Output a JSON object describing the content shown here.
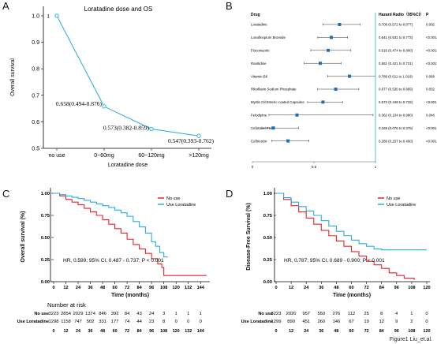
{
  "figure_caption": "Figure1 Liu_et.al.",
  "panels": {
    "A": {
      "letter": "A"
    },
    "B": {
      "letter": "B"
    },
    "C": {
      "letter": "C"
    },
    "D": {
      "letter": "D"
    }
  },
  "chart_data": [
    {
      "id": "A",
      "type": "line",
      "title": "Loratadine dose and OS",
      "xlabel": "Loratadine dose",
      "ylabel": "Overall survival",
      "categories": [
        "no use",
        "0~60mg",
        "60~120mg",
        ">120mg"
      ],
      "values": [
        1.0,
        0.658,
        0.573,
        0.547
      ],
      "point_labels": [
        "1",
        "0.658(0.494-0.876)",
        "0.573(0.382-0.859)",
        "0.547(0.393-0.762)"
      ],
      "ylim": [
        0.5,
        1.0
      ],
      "yticks": [
        "0.5",
        "0.6",
        "0.7",
        "0.8",
        "0.9",
        "1.0"
      ],
      "color": "#29abe2"
    },
    {
      "id": "B",
      "type": "forest",
      "header_drug": "Drug",
      "header_hr": "Hazard Radio（95%CI）",
      "header_p": "P",
      "xticks": [
        "0",
        "0.5",
        "1"
      ],
      "xlim": [
        0,
        1
      ],
      "rows": [
        {
          "drug": "Loratadine",
          "hr": 0.708,
          "lo": 0.572,
          "hi": 0.877,
          "text": "0.708 (0.572 to 0.877)",
          "p": "0.002"
        },
        {
          "drug": "Lonafinopium Bromide",
          "hr": 0.641,
          "lo": 0.531,
          "hi": 0.773,
          "text": "0.641 (0.531 to 0.773)",
          "p": "<0.001"
        },
        {
          "drug": "Fluconazole",
          "hr": 0.616,
          "lo": 0.474,
          "hi": 0.8,
          "text": "0.616 (0.474 to 0.800)",
          "p": "<0.001"
        },
        {
          "drug": "Ranitidine",
          "hr": 0.551,
          "lo": 0.421,
          "hi": 0.721,
          "text": "0.551 (0.421 to 0.721)",
          "p": "<0.001"
        },
        {
          "drug": "Vitamin B6",
          "hr": 0.789,
          "lo": 0.611,
          "hi": 1.019,
          "text": "0.789 (0.611 to 1.019)",
          "p": "0.068"
        },
        {
          "drug": "Riboflavin Sodium Phosphate",
          "hr": 0.677,
          "lo": 0.53,
          "hi": 0.865,
          "text": "0.677 (0.530 to 0.865)",
          "p": "0.002"
        },
        {
          "drug": "Myrtle Oil Enteric-coated Capsules",
          "hr": 0.573,
          "lo": 0.448,
          "hi": 0.732,
          "text": "0.573 (0.448 to 0.732)",
          "p": "<0.001"
        },
        {
          "drug": "Felodipine",
          "hr": 0.362,
          "lo": 0.134,
          "hi": 0.98,
          "text": "0.362 (0.134 to 0.980)",
          "p": "0.046"
        },
        {
          "drug": "Cefotaxel Proxil",
          "hr": 0.169,
          "lo": 0.076,
          "hi": 0.375,
          "text": "0.169 (0.076 to 0.375)",
          "p": "<0.001"
        },
        {
          "drug": "Cefinerdor",
          "hr": 0.289,
          "lo": 0.157,
          "hi": 0.46,
          "text": "0.289 (0.157 to 0.460)",
          "p": "<0.001"
        }
      ]
    },
    {
      "id": "C",
      "type": "line",
      "xlabel": "Time (months)",
      "ylabel": "Overall survival (%)",
      "xlim": [
        0,
        150
      ],
      "ylim": [
        0,
        1
      ],
      "xticks": [
        0,
        12,
        24,
        36,
        48,
        60,
        72,
        84,
        96,
        108,
        120,
        132,
        144
      ],
      "yticks": [
        "0.00",
        "0.25",
        "0.50",
        "0.75",
        "1.00"
      ],
      "legend": [
        "No use",
        "Use Loratadine"
      ],
      "annotation": "HR, 0.599; 95% CI, 0.487 - 0.737; P < 0.001",
      "series": [
        {
          "name": "No use",
          "color": "#e8202a",
          "points": [
            [
              0,
              1
            ],
            [
              6,
              0.97
            ],
            [
              12,
              0.93
            ],
            [
              18,
              0.9
            ],
            [
              24,
              0.87
            ],
            [
              30,
              0.83
            ],
            [
              36,
              0.79
            ],
            [
              42,
              0.75
            ],
            [
              48,
              0.7
            ],
            [
              54,
              0.65
            ],
            [
              60,
              0.6
            ],
            [
              66,
              0.55
            ],
            [
              72,
              0.48
            ],
            [
              78,
              0.42
            ],
            [
              84,
              0.37
            ],
            [
              90,
              0.32
            ],
            [
              96,
              0.26
            ],
            [
              102,
              0.2
            ],
            [
              106,
              0.16
            ],
            [
              108,
              0.07
            ],
            [
              150,
              0.07
            ]
          ]
        },
        {
          "name": "Use Loratadine",
          "color": "#29abe2",
          "points": [
            [
              0,
              1
            ],
            [
              6,
              0.985
            ],
            [
              12,
              0.97
            ],
            [
              18,
              0.955
            ],
            [
              24,
              0.94
            ],
            [
              30,
              0.92
            ],
            [
              36,
              0.9
            ],
            [
              42,
              0.88
            ],
            [
              48,
              0.86
            ],
            [
              54,
              0.84
            ],
            [
              60,
              0.81
            ],
            [
              66,
              0.78
            ],
            [
              72,
              0.74
            ],
            [
              78,
              0.68
            ],
            [
              84,
              0.62
            ],
            [
              90,
              0.55
            ],
            [
              96,
              0.45
            ],
            [
              100,
              0.4
            ],
            [
              104,
              0.33
            ],
            [
              108,
              0.28
            ],
            [
              112,
              0.28
            ]
          ]
        }
      ],
      "risk_title": "Number at risk",
      "risk_x": [
        "0",
        "12",
        "24",
        "36",
        "48",
        "60",
        "72",
        "84",
        "96",
        "108",
        "120",
        "132",
        "144"
      ],
      "risk_rows": [
        {
          "label": "No use",
          "values": [
            "3223",
            "2854",
            "2029",
            "1374",
            "846",
            "392",
            "84",
            "43",
            "24",
            "3",
            "1",
            "1",
            "1"
          ]
        },
        {
          "label": "Use Loratadine",
          "values": [
            "1298",
            "1158",
            "747",
            "502",
            "331",
            "177",
            "74",
            "44",
            "23",
            "8",
            "0",
            "0",
            "0"
          ]
        }
      ]
    },
    {
      "id": "D",
      "type": "line",
      "xlabel": "Time (months)",
      "ylabel": "Disease-Free Survival (%)",
      "xlim": [
        0,
        120
      ],
      "ylim": [
        0,
        1
      ],
      "xticks": [
        0,
        12,
        24,
        36,
        48,
        60,
        72,
        84,
        96,
        108,
        120
      ],
      "yticks": [
        "0.00",
        "0.25",
        "0.50",
        "0.75",
        "1.00"
      ],
      "legend": [
        "No use",
        "Use Loratadine"
      ],
      "annotation": "HR, 0.787; 95% CI, 0.689 - 0.900; P < 0.001",
      "series": [
        {
          "name": "No use",
          "color": "#e8202a",
          "points": [
            [
              0,
              1
            ],
            [
              6,
              0.93
            ],
            [
              12,
              0.86
            ],
            [
              18,
              0.79
            ],
            [
              24,
              0.72
            ],
            [
              30,
              0.65
            ],
            [
              36,
              0.58
            ],
            [
              42,
              0.52
            ],
            [
              48,
              0.46
            ],
            [
              54,
              0.4
            ],
            [
              60,
              0.34
            ],
            [
              66,
              0.29
            ],
            [
              72,
              0.23
            ],
            [
              78,
              0.19
            ],
            [
              84,
              0.15
            ],
            [
              90,
              0.1
            ],
            [
              96,
              0.07
            ],
            [
              102,
              0.04
            ],
            [
              110,
              0.02
            ]
          ]
        },
        {
          "name": "Use Loratadine",
          "color": "#29abe2",
          "points": [
            [
              0,
              1
            ],
            [
              6,
              0.95
            ],
            [
              12,
              0.9
            ],
            [
              18,
              0.85
            ],
            [
              24,
              0.8
            ],
            [
              30,
              0.75
            ],
            [
              36,
              0.69
            ],
            [
              42,
              0.63
            ],
            [
              48,
              0.57
            ],
            [
              54,
              0.52
            ],
            [
              60,
              0.47
            ],
            [
              66,
              0.43
            ],
            [
              72,
              0.4
            ],
            [
              78,
              0.37
            ],
            [
              84,
              0.36
            ],
            [
              96,
              0.36
            ],
            [
              108,
              0.36
            ],
            [
              120,
              0.36
            ]
          ]
        }
      ],
      "risk_title": "Number at risk",
      "risk_x": [
        "0",
        "12",
        "24",
        "36",
        "48",
        "60",
        "72",
        "84",
        "96",
        "108",
        "120"
      ],
      "risk_rows": [
        {
          "label": "No use",
          "values": [
            "3223",
            "2020",
            "957",
            "550",
            "276",
            "112",
            "25",
            "8",
            "4",
            "1",
            "0"
          ]
        },
        {
          "label": "Use Loratadine",
          "values": [
            "1299",
            "890",
            "451",
            "260",
            "146",
            "67",
            "19",
            "12",
            "9",
            "2",
            "0"
          ]
        }
      ]
    }
  ]
}
